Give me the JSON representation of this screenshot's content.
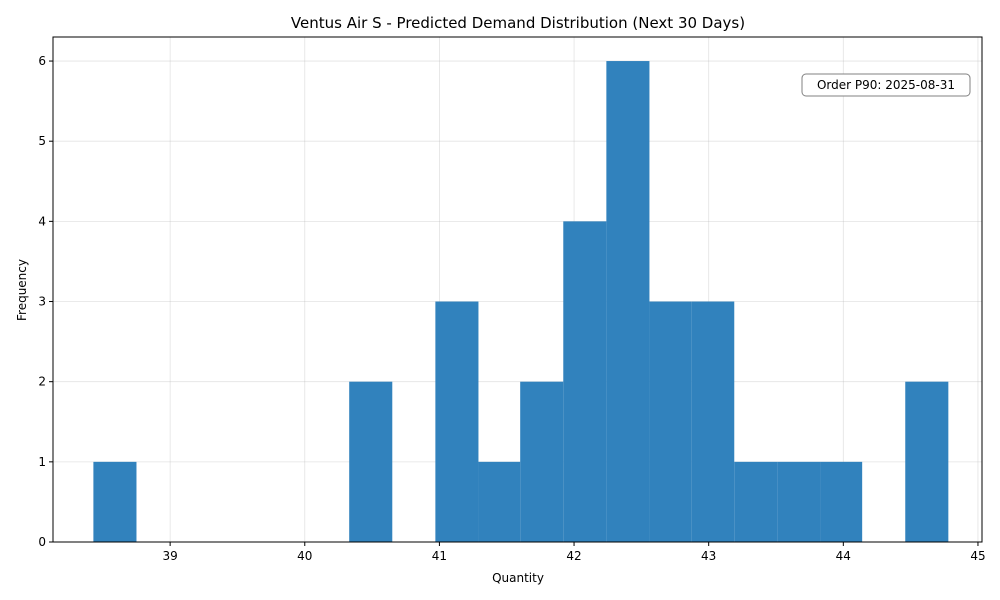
{
  "chart_data": {
    "type": "bar",
    "title": "Ventus Air S - Predicted Demand Distribution (Next 30 Days)",
    "xlabel": "Quantity",
    "ylabel": "Frequency",
    "xlim": [
      38.13,
      45.03
    ],
    "ylim": [
      0,
      6.3
    ],
    "bin_edges": [
      38.43,
      38.75,
      39.06,
      39.38,
      39.7,
      40.02,
      40.33,
      40.65,
      40.97,
      41.29,
      41.6,
      41.92,
      42.24,
      42.56,
      42.87,
      43.19,
      43.51,
      43.83,
      44.14,
      44.46,
      44.78
    ],
    "values": [
      1,
      0,
      0,
      0,
      0,
      0,
      2,
      0,
      3,
      1,
      2,
      4,
      6,
      3,
      3,
      1,
      1,
      1,
      0,
      2
    ],
    "x_ticks": [
      39,
      40,
      41,
      42,
      43,
      44,
      45
    ],
    "y_ticks": [
      0,
      1,
      2,
      3,
      4,
      5,
      6
    ],
    "grid": true,
    "bar_color": "#3182bd",
    "annotation": {
      "text": "Order P90: 2025-08-31",
      "placement": "top-right"
    }
  }
}
